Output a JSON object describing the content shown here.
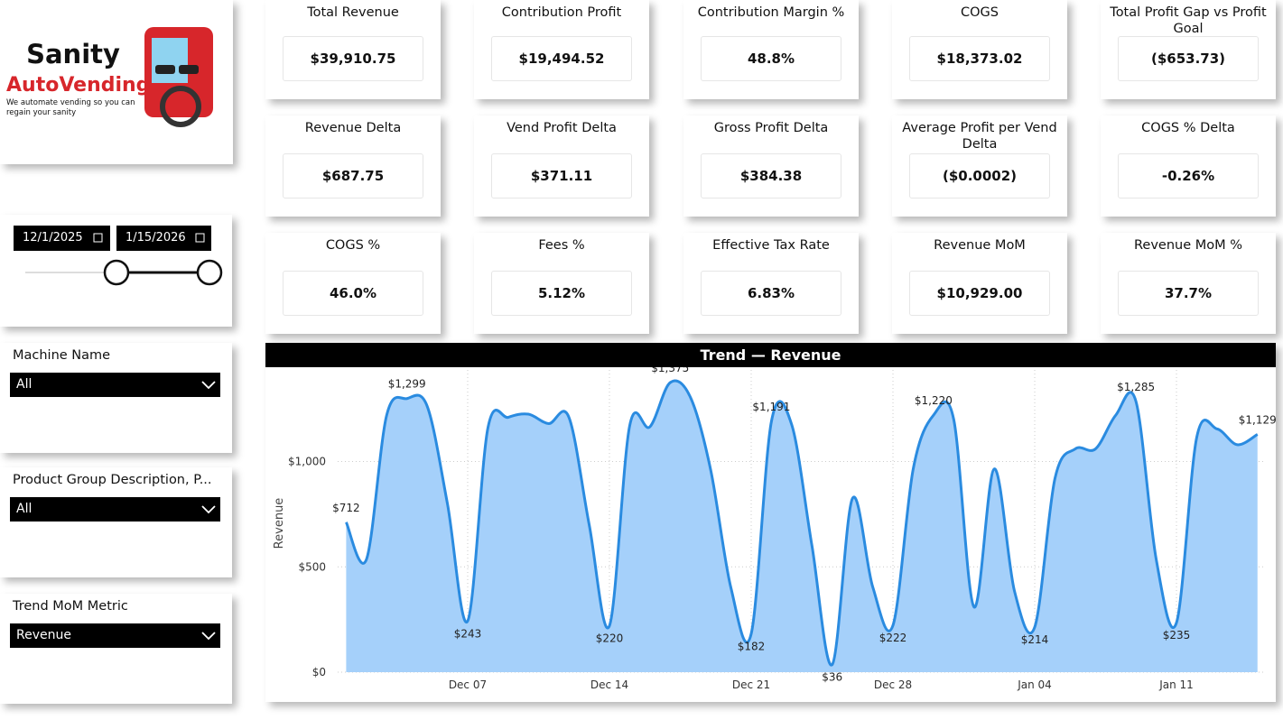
{
  "logo": {
    "name_1": "Sanity",
    "name_2": "AutoVending",
    "tagline": "We automate vending so you can regain your sanity"
  },
  "kpis": [
    {
      "title": "Total Revenue",
      "value": "$39,910.75"
    },
    {
      "title": "Contribution Profit",
      "value": "$19,494.52"
    },
    {
      "title": "Contribution Margin %",
      "value": "48.8%"
    },
    {
      "title": "COGS",
      "value": "$18,373.02"
    },
    {
      "title": "Total Profit Gap vs Profit Goal",
      "value": "($653.73)"
    },
    {
      "title": "Revenue Delta",
      "value": "$687.75"
    },
    {
      "title": "Vend Profit Delta",
      "value": "$371.11"
    },
    {
      "title": "Gross Profit Delta",
      "value": "$384.38"
    },
    {
      "title": "Average Profit per Vend Delta",
      "value": "($0.0002)"
    },
    {
      "title": "COGS % Delta",
      "value": "-0.26%"
    },
    {
      "title": "COGS %",
      "value": "46.0%"
    },
    {
      "title": "Fees %",
      "value": "5.12%"
    },
    {
      "title": "Effective Tax Rate",
      "value": "6.83%"
    },
    {
      "title": "Revenue MoM",
      "value": "$10,929.00"
    },
    {
      "title": "Revenue MoM %",
      "value": "37.7%"
    }
  ],
  "filters": {
    "date_start": "12/1/2025",
    "date_end": "1/15/2026",
    "slicers": [
      {
        "label": "Machine Name",
        "value": "All"
      },
      {
        "label": "Product Group Description, P...",
        "value": "All"
      },
      {
        "label": "Trend MoM Metric",
        "value": "Revenue"
      }
    ]
  },
  "chart_data": {
    "type": "area",
    "title": "Trend — Revenue",
    "y_label": "Revenue",
    "color": "#2a8be0",
    "fill": "#a5d0fa",
    "grid": true,
    "categories": [
      null,
      null,
      null,
      null,
      null,
      null,
      "Dec 07",
      null,
      null,
      null,
      null,
      null,
      null,
      "Dec 14",
      null,
      null,
      null,
      null,
      null,
      null,
      "Dec 21",
      null,
      null,
      null,
      null,
      null,
      null,
      "Dec 28",
      null,
      null,
      null,
      null,
      null,
      null,
      "Jan 04",
      null,
      null,
      null,
      null,
      null,
      null,
      "Jan 11",
      null,
      null,
      null,
      null
    ],
    "values": [
      712,
      535,
      1220,
      1299,
      1263,
      800,
      243,
      1160,
      1210,
      1225,
      1180,
      1210,
      700,
      220,
      1170,
      1165,
      1375,
      1305,
      960,
      400,
      182,
      1191,
      1175,
      600,
      36,
      825,
      405,
      222,
      965,
      1220,
      1200,
      310,
      965,
      385,
      214,
      920,
      1060,
      1060,
      1220,
      1285,
      535,
      235,
      1115,
      1155,
      1080,
      1129
    ],
    "value_labels": [
      "$712",
      null,
      null,
      "$1,299",
      null,
      null,
      "$243",
      null,
      null,
      null,
      null,
      null,
      null,
      "$220",
      null,
      null,
      "$1,375",
      null,
      null,
      null,
      "$182",
      "$1,191",
      null,
      null,
      "$36",
      null,
      null,
      "$222",
      null,
      "$1,220",
      null,
      null,
      null,
      null,
      "$214",
      null,
      null,
      null,
      null,
      "$1,285",
      null,
      "$235",
      null,
      null,
      null,
      "$1,129"
    ],
    "ylim": [
      0,
      1435
    ],
    "yticks": [
      {
        "value": 0,
        "label": "$0"
      },
      {
        "value": 500,
        "label": "$500"
      },
      {
        "value": 1000,
        "label": "$1,000"
      }
    ]
  }
}
